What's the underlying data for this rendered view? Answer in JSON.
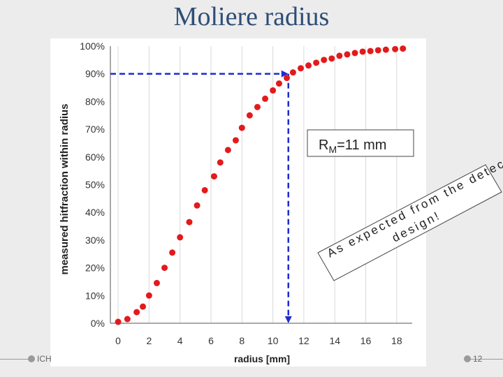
{
  "slide": {
    "title": "Moliere radius",
    "footer_left": "ICH",
    "page_number": "12"
  },
  "chart_data": {
    "type": "scatter",
    "xlabel": "radius [mm]",
    "ylabel": "measured hitfraction within radius",
    "xlim": [
      -0.5,
      19
    ],
    "ylim": [
      0,
      100
    ],
    "x_ticks": [
      "0",
      "2",
      "4",
      "6",
      "8",
      "10",
      "12",
      "14",
      "16",
      "18"
    ],
    "y_ticks": [
      "0%",
      "10%",
      "20%",
      "30%",
      "40%",
      "50%",
      "60%",
      "70%",
      "80%",
      "90%",
      "100%"
    ],
    "grid": "vertical",
    "marker_color": "#e31a1c",
    "series": [
      {
        "x": [
          0,
          0.6,
          1.2,
          1.6,
          2.0,
          2.5,
          3.0,
          3.5,
          4.0,
          4.6,
          5.1,
          5.6,
          6.2,
          6.6,
          7.1,
          7.6,
          8.0,
          8.5,
          9.0,
          9.5,
          10.0,
          10.4,
          10.9,
          11.3,
          11.8,
          12.3,
          12.8,
          13.3,
          13.8,
          14.3,
          14.8,
          15.3,
          15.8,
          16.3,
          16.8,
          17.3,
          17.9,
          18.4
        ],
        "y": [
          0.5,
          1.5,
          4,
          6,
          10,
          14.5,
          20,
          25.5,
          31,
          36.5,
          42.5,
          48,
          53,
          58,
          62.5,
          66,
          70.5,
          75,
          78,
          81,
          84,
          86.5,
          88.5,
          90.5,
          92,
          93,
          94,
          95,
          95.5,
          96.5,
          97,
          97.5,
          98,
          98.2,
          98.5,
          98.7,
          98.9,
          99.1
        ]
      }
    ],
    "annotations": {
      "rm_box": "RM=11 mm",
      "rm_x": 11,
      "rm_y": 90,
      "note_line1": "As expected from the detector",
      "note_line2": "design!"
    }
  },
  "labels": {
    "rm_main": "R",
    "rm_sub": "M",
    "rm_rest": "=11 mm"
  }
}
